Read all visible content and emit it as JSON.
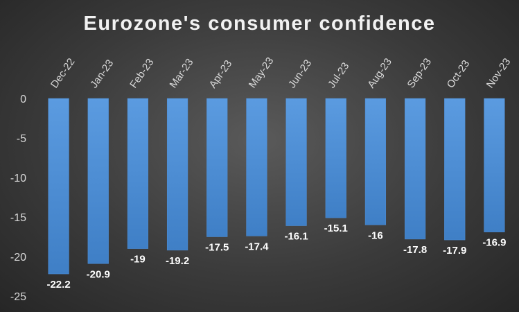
{
  "chart_data": {
    "type": "bar",
    "title": "Eurozone's consumer confidence",
    "categories": [
      "Dec-22",
      "Jan-23",
      "Feb-23",
      "Mar-23",
      "Apr-23",
      "May-23",
      "Jun-23",
      "Jul-23",
      "Aug-23",
      "Sep-23",
      "Oct-23",
      "Nov-23"
    ],
    "values": [
      -22.2,
      -20.9,
      -19,
      -19.2,
      -17.5,
      -17.4,
      -16.1,
      -15.1,
      -16,
      -17.8,
      -17.9,
      -16.9
    ],
    "data_labels": [
      "-22.2",
      "-20.9",
      "-19",
      "-19.2",
      "-17.5",
      "-17.4",
      "-16.1",
      "-15.1",
      "-16",
      "-17.8",
      "-17.9",
      "-16.9"
    ],
    "y_ticks": [
      "0",
      "-5",
      "-10",
      "-15",
      "-20",
      "-25"
    ],
    "ylim": [
      -25,
      0
    ],
    "xlabel": "",
    "ylabel": "",
    "grid": false,
    "legend": "none",
    "bar_color": "#4f8fd6",
    "x_axis_position": "top"
  }
}
